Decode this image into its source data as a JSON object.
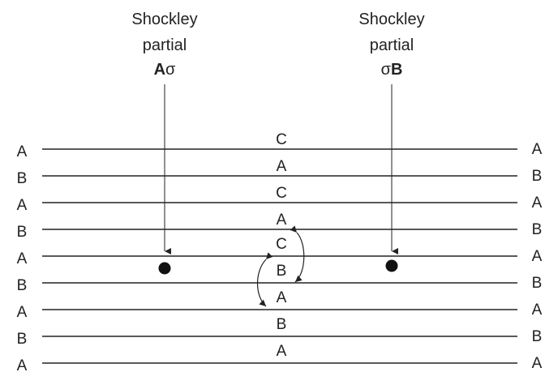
{
  "partials": [
    {
      "line1": "Shockley",
      "line2": "partial",
      "symbol_bold": "A",
      "symbol_greek": "σ"
    },
    {
      "line1": "Shockley",
      "line2": "partial",
      "symbol_greek": "σ",
      "symbol_bold": "B"
    }
  ],
  "planes": [
    {
      "left": "A",
      "right": "A"
    },
    {
      "left": "B",
      "right": "B"
    },
    {
      "left": "A",
      "right": "A"
    },
    {
      "left": "B",
      "right": "B"
    },
    {
      "left": "A",
      "right": "A"
    },
    {
      "left": "B",
      "right": "B"
    },
    {
      "left": "A",
      "right": "A"
    },
    {
      "left": "B",
      "right": "B"
    },
    {
      "left": "A",
      "right": "A"
    }
  ],
  "center_labels": [
    "C",
    "A",
    "C",
    "A",
    "C",
    "B",
    "A",
    "B",
    "A"
  ],
  "colors": {
    "line": "#222222",
    "text": "#222222",
    "background": "#ffffff"
  }
}
